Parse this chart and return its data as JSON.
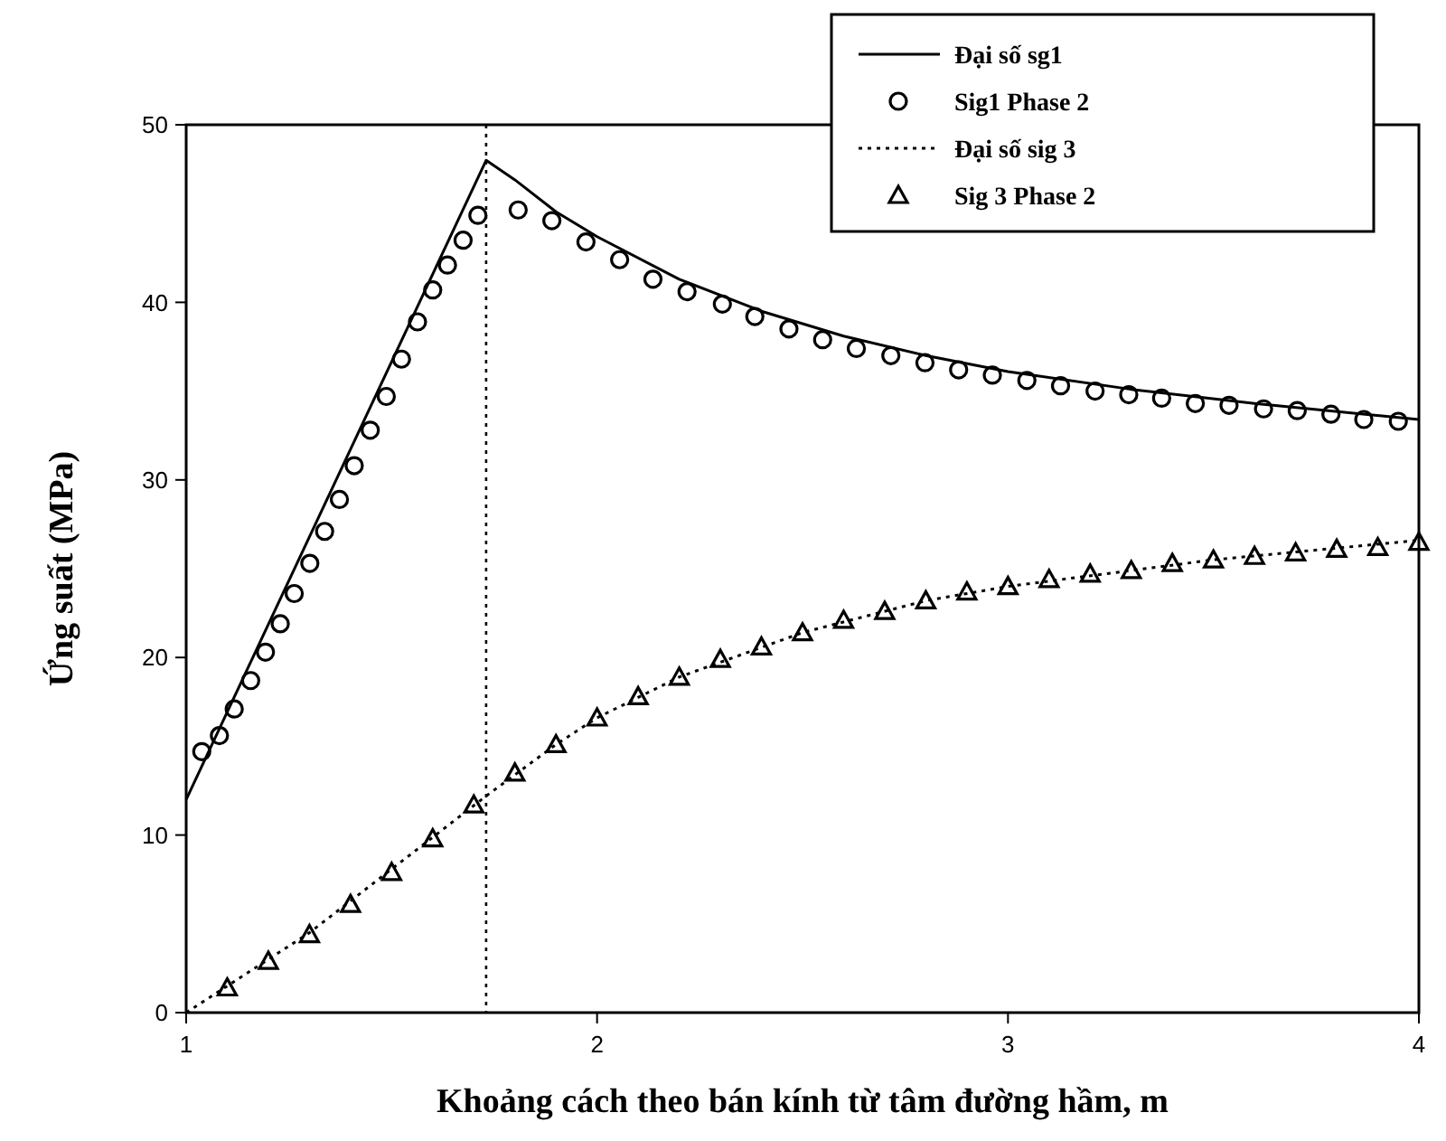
{
  "chart_data": {
    "type": "line",
    "xlabel": "Khoảng cách theo bán kính từ tâm đường hầm, m",
    "ylabel": "Ứng suất (MPa)",
    "xlim": [
      1,
      4
    ],
    "ylim": [
      0,
      50
    ],
    "xticks": [
      1,
      2,
      3,
      4
    ],
    "yticks": [
      0,
      10,
      20,
      30,
      40,
      50
    ],
    "grid": false,
    "legend": "top right",
    "ref_lines": [
      {
        "axis": "x",
        "value": 1.73,
        "line_style": "dotted",
        "color": "#000000"
      }
    ],
    "series": [
      {
        "name": "Đại số sg1",
        "color": "#000000",
        "line_style": "solid",
        "marker": "none",
        "x": [
          1,
          1.73,
          1.8,
          1.9,
          2,
          2.2,
          2.4,
          2.6,
          2.8,
          3,
          3.3,
          3.6,
          4
        ],
        "values": [
          12,
          48,
          46.9,
          45.1,
          43.7,
          41.3,
          39.5,
          38.1,
          37,
          36.1,
          35.1,
          34.3,
          33.4
        ]
      },
      {
        "name": "Sig1 Phase 2",
        "type": "scatter",
        "color": "#000000",
        "marker": "circle",
        "x": [
          1.038,
          1.081,
          1.117,
          1.157,
          1.193,
          1.229,
          1.263,
          1.301,
          1.337,
          1.373,
          1.409,
          1.448,
          1.487,
          1.524,
          1.563,
          1.6,
          1.636,
          1.674,
          1.71,
          1.808,
          1.89,
          1.973,
          2.055,
          2.136,
          2.219,
          2.305,
          2.384,
          2.467,
          2.549,
          2.631,
          2.715,
          2.798,
          2.88,
          2.962,
          3.046,
          3.128,
          3.212,
          3.294,
          3.374,
          3.456,
          3.538,
          3.622,
          3.704,
          3.786,
          3.866,
          3.95
        ],
        "values": [
          14.7,
          15.6,
          17.1,
          18.7,
          20.3,
          21.9,
          23.6,
          25.3,
          27.1,
          28.9,
          30.8,
          32.8,
          34.7,
          36.8,
          38.9,
          40.7,
          42.1,
          43.5,
          44.9,
          45.2,
          44.6,
          43.4,
          42.4,
          41.3,
          40.6,
          39.9,
          39.2,
          38.5,
          37.9,
          37.4,
          37,
          36.6,
          36.2,
          35.9,
          35.6,
          35.3,
          35,
          34.8,
          34.6,
          34.3,
          34.2,
          34,
          33.9,
          33.7,
          33.4,
          33.3
        ]
      },
      {
        "name": "Đại số sig 3",
        "color": "#000000",
        "line_style": "dotted",
        "marker": "none",
        "x": [
          1,
          1.3,
          1.73,
          1.9,
          2,
          2.2,
          2.5,
          2.8,
          3,
          3.5,
          4
        ],
        "values": [
          0,
          4.5,
          12.2,
          15.1,
          16.6,
          18.9,
          21.4,
          23.2,
          24,
          25.5,
          26.6
        ]
      },
      {
        "name": "Sig 3 Phase 2",
        "type": "scatter",
        "color": "#000000",
        "marker": "triangle",
        "x": [
          1.1,
          1.2,
          1.3,
          1.4,
          1.5,
          1.6,
          1.7,
          1.8,
          1.9,
          2,
          2.1,
          2.2,
          2.3,
          2.4,
          2.5,
          2.6,
          2.7,
          2.8,
          2.9,
          3,
          3.1,
          3.2,
          3.3,
          3.4,
          3.5,
          3.6,
          3.7,
          3.8,
          3.9,
          4
        ],
        "values": [
          1.4,
          2.9,
          4.4,
          6.1,
          7.9,
          9.8,
          11.7,
          13.5,
          15.1,
          16.6,
          17.8,
          18.9,
          19.9,
          20.6,
          21.4,
          22.1,
          22.6,
          23.2,
          23.7,
          24,
          24.4,
          24.7,
          24.9,
          25.3,
          25.5,
          25.7,
          25.9,
          26.1,
          26.2,
          26.5
        ]
      }
    ]
  }
}
